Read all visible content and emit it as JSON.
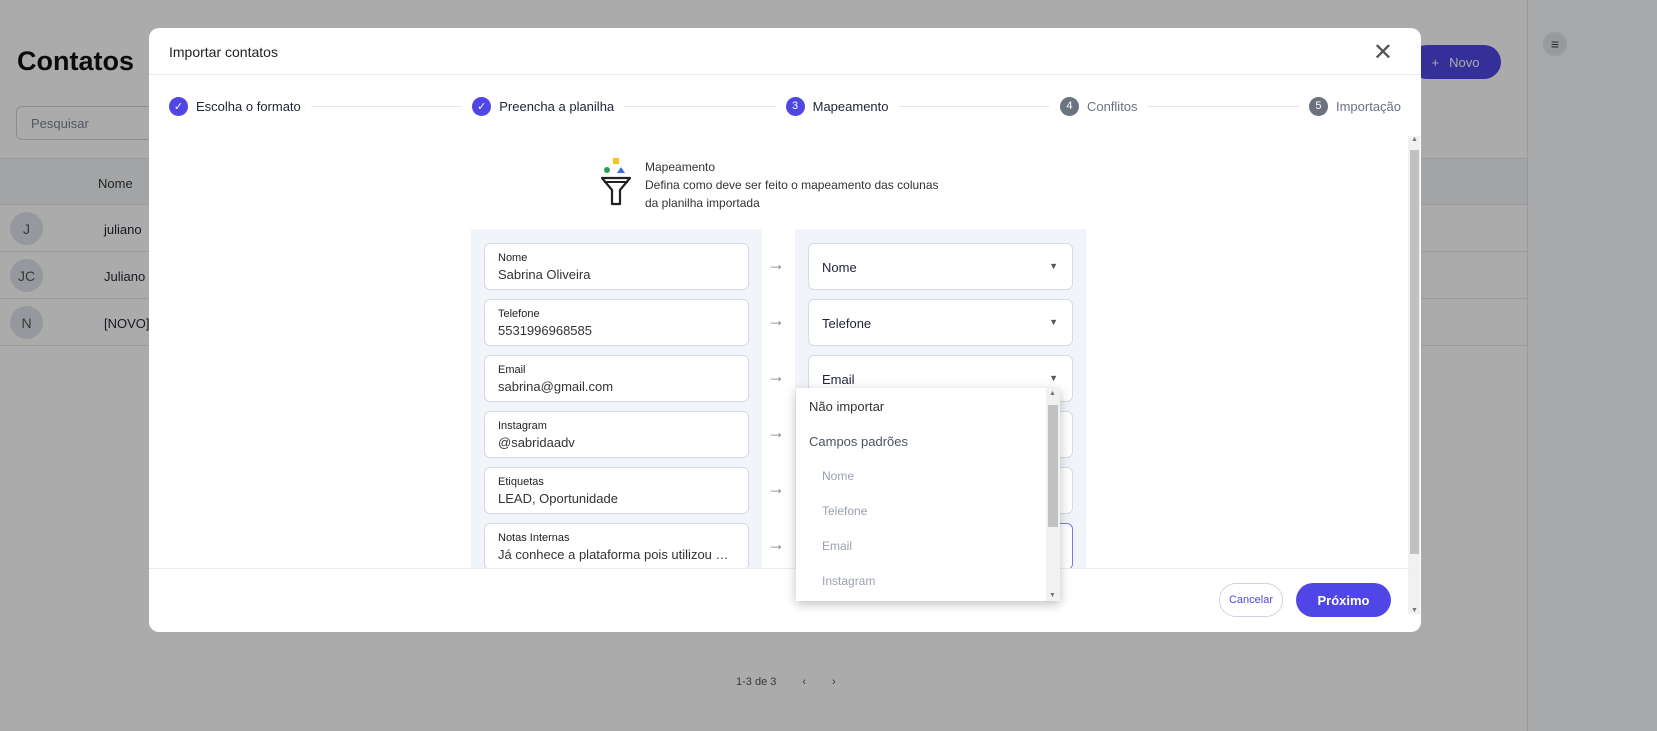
{
  "background": {
    "title": "Contatos",
    "search_placeholder": "Pesquisar",
    "column_name": "Nome",
    "new_button": "Novo",
    "rows": [
      {
        "initials": "J",
        "name": "juliano"
      },
      {
        "initials": "JC",
        "name": "Juliano C"
      },
      {
        "initials": "N",
        "name": "[NOVO]"
      }
    ],
    "pagination": "1-3 de 3"
  },
  "modal": {
    "title": "Importar contatos",
    "steps": [
      {
        "label": "Escolha o formato",
        "status": "done"
      },
      {
        "label": "Preencha a planilha",
        "status": "done"
      },
      {
        "number": "3",
        "label": "Mapeamento",
        "status": "active"
      },
      {
        "number": "4",
        "label": "Conflitos",
        "status": "pending"
      },
      {
        "number": "5",
        "label": "Importação",
        "status": "pending"
      }
    ],
    "intro": {
      "title": "Mapeamento",
      "line1": "Defina como deve ser feito o mapeamento das colunas",
      "line2": "da planilha importada"
    },
    "columns": [
      {
        "label": "Nome",
        "value": "Sabrina Oliveira",
        "mapped": "Nome"
      },
      {
        "label": "Telefone",
        "value": "5531996968585",
        "mapped": "Telefone"
      },
      {
        "label": "Email",
        "value": "sabrina@gmail.com",
        "mapped": "Email"
      },
      {
        "label": "Instagram",
        "value": "@sabridaadv",
        "mapped": ""
      },
      {
        "label": "Etiquetas",
        "value": "LEAD, Oportunidade",
        "mapped": ""
      },
      {
        "label": "Notas Internas",
        "value": "Já conhece a plataforma pois utilizou na ...",
        "mapped": ""
      }
    ],
    "dropdown": {
      "items": [
        {
          "label": "Não importar",
          "type": "option"
        },
        {
          "label": "Campos padrões",
          "type": "group"
        },
        {
          "label": "Nome",
          "type": "sub"
        },
        {
          "label": "Telefone",
          "type": "sub"
        },
        {
          "label": "Email",
          "type": "sub"
        },
        {
          "label": "Instagram",
          "type": "sub"
        }
      ]
    },
    "cancel": "Cancelar",
    "next": "Próximo"
  },
  "colors": {
    "accent": "#4f46e5"
  }
}
